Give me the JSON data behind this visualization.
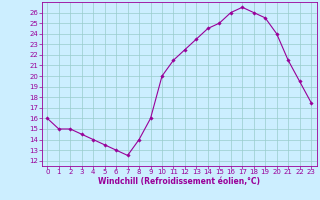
{
  "x": [
    0,
    1,
    2,
    3,
    4,
    5,
    6,
    7,
    8,
    9,
    10,
    11,
    12,
    13,
    14,
    15,
    16,
    17,
    18,
    19,
    20,
    21,
    22,
    23
  ],
  "y": [
    16,
    15,
    15,
    14.5,
    14,
    13.5,
    13,
    12.5,
    14,
    16,
    20,
    21.5,
    22.5,
    23.5,
    24.5,
    25,
    26,
    26.5,
    26,
    25.5,
    24,
    21.5,
    19.5,
    17.5
  ],
  "line_color": "#990099",
  "marker": "D",
  "marker_size": 1.8,
  "bg_color": "#cceeff",
  "grid_color": "#99cccc",
  "xlabel": "Windchill (Refroidissement éolien,°C)",
  "xlabel_color": "#990099",
  "tick_color": "#990099",
  "xlim": [
    -0.5,
    23.5
  ],
  "ylim": [
    11.5,
    27
  ],
  "yticks": [
    12,
    13,
    14,
    15,
    16,
    17,
    18,
    19,
    20,
    21,
    22,
    23,
    24,
    25,
    26
  ],
  "xticks": [
    0,
    1,
    2,
    3,
    4,
    5,
    6,
    7,
    8,
    9,
    10,
    11,
    12,
    13,
    14,
    15,
    16,
    17,
    18,
    19,
    20,
    21,
    22,
    23
  ],
  "label_fontsize": 5.5,
  "tick_fontsize": 5
}
